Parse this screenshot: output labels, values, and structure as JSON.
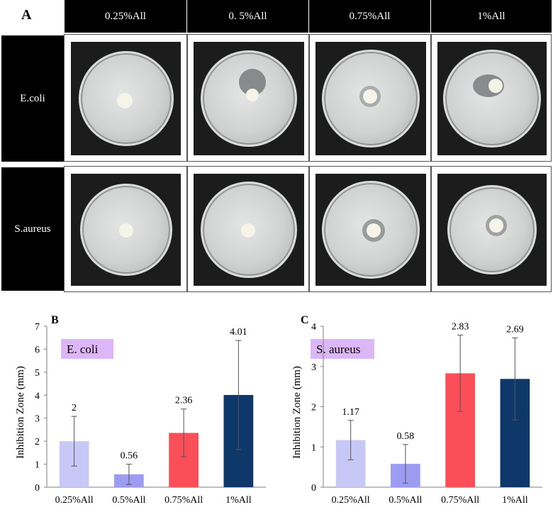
{
  "panel_a": {
    "label": "A",
    "columns": [
      "0.25%All",
      "0. 5%All",
      "0.75%All",
      "1%All"
    ],
    "rows": [
      "E.coli",
      "S.aureus"
    ]
  },
  "chart_data": [
    {
      "panel": "B",
      "type": "bar",
      "legend_label": "E. coli",
      "ylabel": "Inhibition Zone (mm)",
      "categories": [
        "0.25%All",
        "0.5%All",
        "0.75%All",
        "1%All"
      ],
      "values": [
        2,
        0.56,
        2.36,
        4.01
      ],
      "value_labels": [
        "2",
        "0.56",
        "2.36",
        "4.01"
      ],
      "error_low": [
        0.92,
        0.12,
        1.32,
        1.64
      ],
      "error_high": [
        3.08,
        1.0,
        3.4,
        6.38
      ],
      "colors": [
        "#c8c8f6",
        "#9c9cf2",
        "#fa4e58",
        "#0e3869"
      ],
      "ylim": [
        0,
        7
      ],
      "yticks": [
        0,
        1,
        2,
        3,
        4,
        5,
        6,
        7
      ],
      "ytick_labels": [
        "0",
        "1",
        "2",
        "3",
        "4",
        "5",
        "6",
        "7"
      ]
    },
    {
      "panel": "C",
      "type": "bar",
      "legend_label": "S. aureus",
      "ylabel": "Inhibition Zone (mm)",
      "categories": [
        "0.25%All",
        "0.5%All",
        "0.75%All",
        "1%All"
      ],
      "values": [
        1.17,
        0.58,
        2.83,
        2.69
      ],
      "value_labels": [
        "1.17",
        "0.58",
        "2.83",
        "2.69"
      ],
      "error_low": [
        0.68,
        0.1,
        1.88,
        1.67
      ],
      "error_high": [
        1.66,
        1.06,
        3.78,
        3.71
      ],
      "colors": [
        "#c8c8f6",
        "#9c9cf2",
        "#fa4e58",
        "#0e3869"
      ],
      "ylim": [
        0,
        4
      ],
      "yticks": [
        0,
        1,
        2,
        3,
        4
      ],
      "ytick_labels": [
        "0",
        "1",
        "2",
        "3",
        "4"
      ]
    }
  ]
}
